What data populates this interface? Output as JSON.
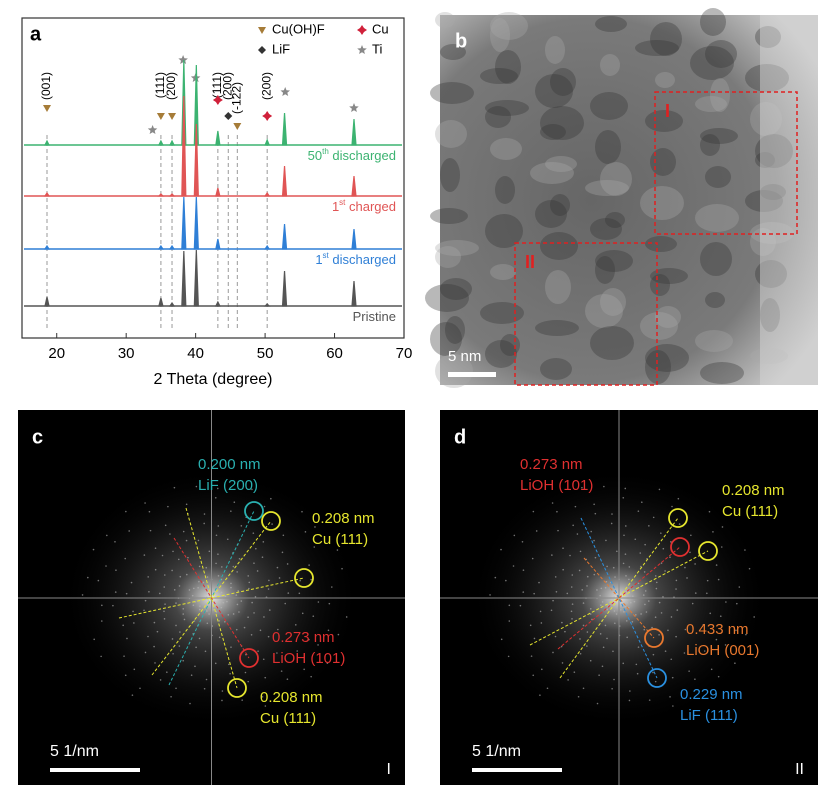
{
  "chart_data": {
    "type": "spectrum",
    "panel_label": "a",
    "xlabel": "2 Theta (degree)",
    "xlim": [
      15,
      70
    ],
    "xticks": [
      20,
      30,
      40,
      50,
      60,
      70
    ],
    "x": [
      18.6,
      35,
      36.6,
      38.3,
      40.1,
      43.2,
      50.3,
      52.8,
      62.8
    ],
    "series": [
      {
        "label": {
          "main": "50",
          "sup": "th",
          "rest": " discharged"
        },
        "color": "#3cb371",
        "values": [
          4,
          4,
          4,
          85,
          80,
          14,
          5,
          32,
          26
        ]
      },
      {
        "label": {
          "main": "1",
          "sup": "st",
          "rest": " charged"
        },
        "color": "#e05555",
        "values": [
          3,
          2,
          2,
          100,
          72,
          8,
          3,
          30,
          20
        ]
      },
      {
        "label": {
          "main": "1",
          "sup": "st",
          "rest": " discharged"
        },
        "color": "#2f7fd6",
        "values": [
          3,
          3,
          3,
          52,
          52,
          10,
          3,
          25,
          20
        ]
      },
      {
        "label": {
          "main": "Pristine",
          "sup": "",
          "rest": ""
        },
        "color": "#555555",
        "values": [
          9,
          8,
          3,
          55,
          56,
          4,
          2,
          35,
          25
        ]
      }
    ],
    "legend": [
      {
        "text": "Cu(OH)F",
        "color": "#a67c38"
      },
      {
        "text": "Cu",
        "color": "#d0203a"
      },
      {
        "text": "LiF",
        "color": "#333333"
      },
      {
        "text": "Ti",
        "color": "#888888"
      }
    ],
    "peak_markers": [
      {
        "x": 18.6,
        "phase": 0
      },
      {
        "x": 33.8,
        "phase": 3
      },
      {
        "x": 35,
        "phase": 0
      },
      {
        "x": 36.6,
        "phase": 0
      },
      {
        "x": 38.2,
        "phase": 3
      },
      {
        "x": 40,
        "phase": 3
      },
      {
        "x": 43.2,
        "phase": 1
      },
      {
        "x": 44.7,
        "phase": 2
      },
      {
        "x": 46,
        "phase": 0
      },
      {
        "x": 50.3,
        "phase": 1
      },
      {
        "x": 52.9,
        "phase": 3
      },
      {
        "x": 62.8,
        "phase": 3
      }
    ],
    "peak_labels": [
      {
        "x": 18.6,
        "text": "(001)"
      },
      {
        "x": 35,
        "text": "(111)"
      },
      {
        "x": 36.6,
        "text": "(200)"
      },
      {
        "x": 43.2,
        "text": "(111)"
      },
      {
        "x": 44.7,
        "text": "(200)"
      },
      {
        "x": 46,
        "text": "(-122)"
      },
      {
        "x": 50.3,
        "text": "(200)"
      }
    ]
  },
  "tem": {
    "label": "b",
    "scale_bar": "5 nm",
    "regions": [
      "I",
      "II"
    ]
  },
  "fft": [
    {
      "label": "c",
      "scale_bar": "5 1/nm",
      "region": "I",
      "notes": [
        {
          "lines": [
            "0.200 nm",
            "LiF (200)"
          ],
          "color": "#2ab0b0"
        },
        {
          "lines": [
            "0.208 nm",
            "Cu (111)"
          ],
          "color": "#e6e62e"
        },
        {
          "lines": [
            "0.273 nm",
            "LiOH (101)"
          ],
          "color": "#e03030"
        },
        {
          "lines": [
            "0.208 nm",
            "Cu (111)"
          ],
          "color": "#e6e62e"
        }
      ]
    },
    {
      "label": "d",
      "scale_bar": "5 1/nm",
      "region": "II",
      "notes": [
        {
          "lines": [
            "0.273 nm",
            "LiOH (101)"
          ],
          "color": "#e03030"
        },
        {
          "lines": [
            "0.208 nm",
            "Cu (111)"
          ],
          "color": "#e6e62e"
        },
        {
          "lines": [
            "0.433 nm",
            "LiOH (001)"
          ],
          "color": "#e8782e"
        },
        {
          "lines": [
            "0.229 nm",
            "LiF (111)"
          ],
          "color": "#2a90e0"
        }
      ]
    }
  ]
}
